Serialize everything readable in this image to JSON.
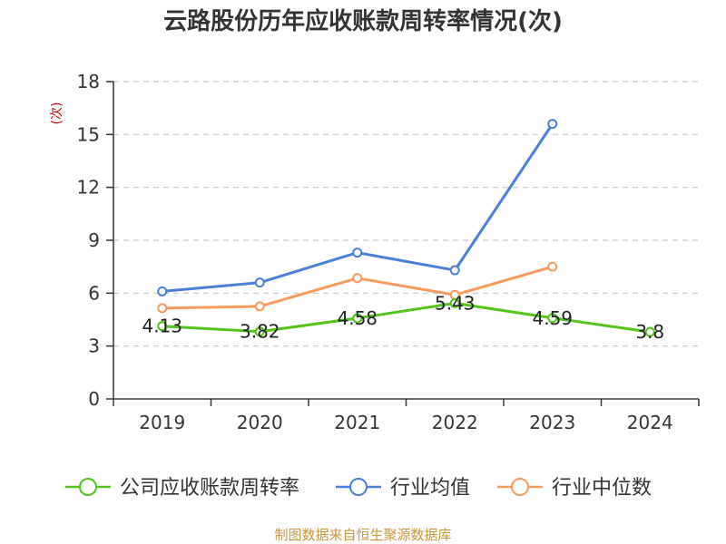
{
  "chart_data": {
    "type": "line",
    "title": "云路股份历年应收账款周转率情况(次)",
    "ylabel": "(次)",
    "xlabel": "",
    "categories": [
      "2019",
      "2020",
      "2021",
      "2022",
      "2023",
      "2024"
    ],
    "ylim": [
      0,
      18
    ],
    "yticks": [
      0,
      3,
      6,
      9,
      12,
      15,
      18
    ],
    "grid": true,
    "legend_position": "bottom",
    "series": [
      {
        "name": "公司应收账款周转率",
        "color": "#52c41a",
        "labels": true,
        "values": [
          4.13,
          3.82,
          4.58,
          5.43,
          4.59,
          3.8
        ]
      },
      {
        "name": "行业均值",
        "color": "#4a7fd9",
        "labels": false,
        "values": [
          6.1,
          6.6,
          8.3,
          7.3,
          15.6,
          null
        ]
      },
      {
        "name": "行业中位数",
        "color": "#f79a5d",
        "labels": false,
        "values": [
          5.15,
          5.25,
          6.85,
          5.9,
          7.5,
          null
        ]
      }
    ],
    "ylabel_color": "#cc0000",
    "source": "制图数据来自恒生聚源数据库",
    "source_color": "#c8963c"
  }
}
